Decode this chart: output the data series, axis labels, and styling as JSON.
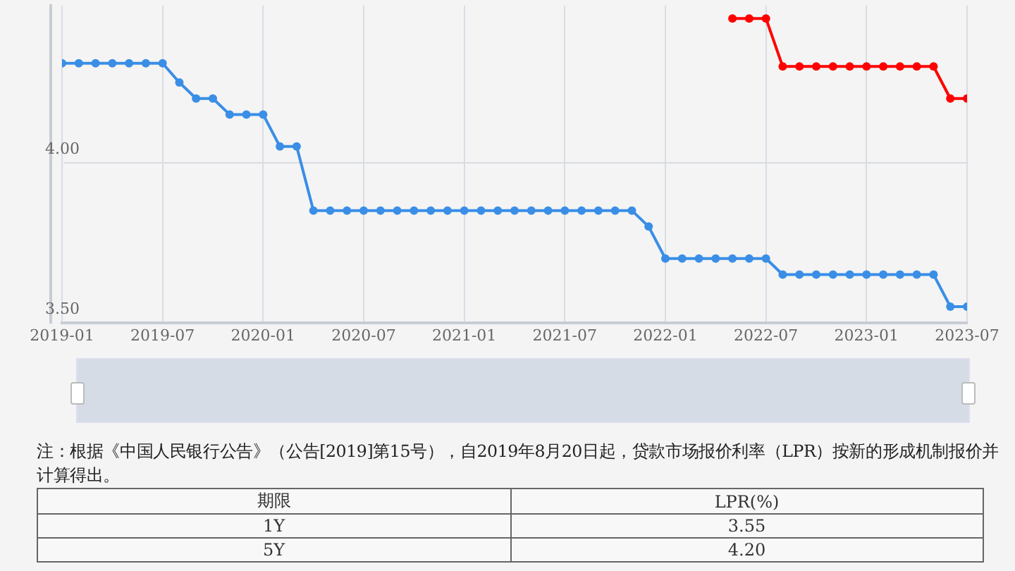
{
  "chart_data": {
    "type": "line",
    "x": [
      "2019-01",
      "2019-02",
      "2019-03",
      "2019-04",
      "2019-05",
      "2019-06",
      "2019-07",
      "2019-08",
      "2019-09",
      "2019-10",
      "2019-11",
      "2019-12",
      "2020-01",
      "2020-02",
      "2020-03",
      "2020-04",
      "2020-05",
      "2020-06",
      "2020-07",
      "2020-08",
      "2020-09",
      "2020-10",
      "2020-11",
      "2020-12",
      "2021-01",
      "2021-02",
      "2021-03",
      "2021-04",
      "2021-05",
      "2021-06",
      "2021-07",
      "2021-08",
      "2021-09",
      "2021-10",
      "2021-11",
      "2021-12",
      "2022-01",
      "2022-02",
      "2022-03",
      "2022-04",
      "2022-05",
      "2022-06",
      "2022-07",
      "2022-08",
      "2022-09",
      "2022-10",
      "2022-11",
      "2022-12",
      "2023-01",
      "2023-02",
      "2023-03",
      "2023-04",
      "2023-05",
      "2023-06",
      "2023-07"
    ],
    "series": [
      {
        "color": "#3a8ee6",
        "values": [
          4.31,
          4.31,
          4.31,
          4.31,
          4.31,
          4.31,
          4.31,
          4.25,
          4.2,
          4.2,
          4.15,
          4.15,
          4.15,
          4.05,
          4.05,
          3.85,
          3.85,
          3.85,
          3.85,
          3.85,
          3.85,
          3.85,
          3.85,
          3.85,
          3.85,
          3.85,
          3.85,
          3.85,
          3.85,
          3.85,
          3.85,
          3.85,
          3.85,
          3.85,
          3.85,
          3.8,
          3.7,
          3.7,
          3.7,
          3.7,
          3.7,
          3.7,
          3.7,
          3.65,
          3.65,
          3.65,
          3.65,
          3.65,
          3.65,
          3.65,
          3.65,
          3.65,
          3.65,
          3.55,
          3.55
        ]
      },
      {
        "color": "#ff0000",
        "values": [
          null,
          null,
          null,
          null,
          null,
          null,
          null,
          null,
          null,
          null,
          null,
          null,
          null,
          null,
          null,
          null,
          null,
          null,
          null,
          null,
          null,
          null,
          null,
          null,
          null,
          null,
          null,
          null,
          null,
          null,
          null,
          null,
          null,
          null,
          null,
          null,
          null,
          null,
          null,
          null,
          4.45,
          4.45,
          4.45,
          4.3,
          4.3,
          4.3,
          4.3,
          4.3,
          4.3,
          4.3,
          4.3,
          4.3,
          4.3,
          4.2,
          4.2
        ]
      }
    ],
    "xlim": [
      "2019-01",
      "2023-07"
    ],
    "xticks": [
      "2019-01",
      "2019-07",
      "2020-01",
      "2020-07",
      "2021-01",
      "2021-07",
      "2022-01",
      "2022-07",
      "2023-01",
      "2023-07"
    ],
    "ylim": [
      3.5,
      4.49
    ],
    "yticks": [
      {
        "value": 3.5,
        "label": "3.50"
      },
      {
        "value": 4,
        "label": "4.00"
      }
    ],
    "grid": true,
    "legend": false,
    "marker": "circle",
    "line_style": "solid",
    "annotations": [
      "注：根据《中国人民银行公告》（公告[2019]第15号），自2019年8月20日起，贷款市场报价利率（LPR）按新的形成机制报价并计算得出。",
      "期限",
      "LPR(%)",
      "1Y",
      "3.55",
      "5Y",
      "4.20"
    ]
  }
}
